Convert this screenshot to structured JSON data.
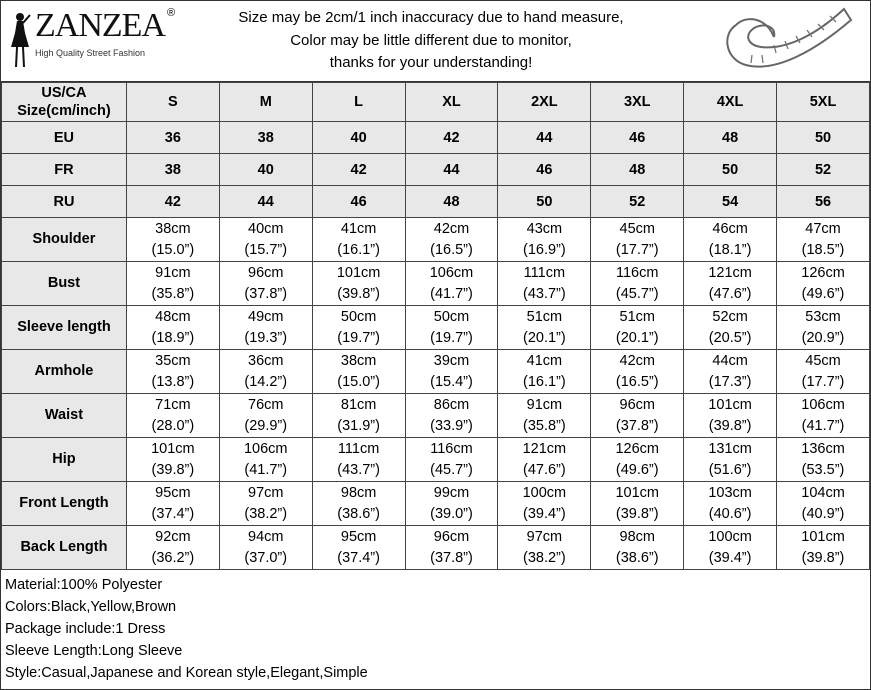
{
  "brand": {
    "name": "ZANZEA",
    "registered": "®",
    "tagline": "High Quality Street Fashion"
  },
  "notice": [
    "Size may be 2cm/1 inch inaccuracy due to hand measure,",
    "Color may be little different due to monitor,",
    "thanks for your understanding!"
  ],
  "table": {
    "header_label": [
      "US/CA",
      "Size(cm/inch)"
    ],
    "sizes": [
      "S",
      "M",
      "L",
      "XL",
      "2XL",
      "3XL",
      "4XL",
      "5XL"
    ],
    "intl_rows": [
      {
        "label": "EU",
        "values": [
          "36",
          "38",
          "40",
          "42",
          "44",
          "46",
          "48",
          "50"
        ]
      },
      {
        "label": "FR",
        "values": [
          "38",
          "40",
          "42",
          "44",
          "46",
          "48",
          "50",
          "52"
        ]
      },
      {
        "label": "RU",
        "values": [
          "42",
          "44",
          "46",
          "48",
          "50",
          "52",
          "54",
          "56"
        ]
      }
    ],
    "measure_rows": [
      {
        "label": "Shoulder",
        "cm": [
          "38cm",
          "40cm",
          "41cm",
          "42cm",
          "43cm",
          "45cm",
          "46cm",
          "47cm"
        ],
        "inch": [
          "(15.0”)",
          "(15.7”)",
          "(16.1”)",
          "(16.5”)",
          "(16.9”)",
          "(17.7”)",
          "(18.1”)",
          "(18.5”)"
        ]
      },
      {
        "label": "Bust",
        "cm": [
          "91cm",
          "96cm",
          "101cm",
          "106cm",
          "111cm",
          "116cm",
          "121cm",
          "126cm"
        ],
        "inch": [
          "(35.8”)",
          "(37.8”)",
          "(39.8”)",
          "(41.7”)",
          "(43.7”)",
          "(45.7”)",
          "(47.6”)",
          "(49.6”)"
        ]
      },
      {
        "label": "Sleeve length",
        "cm": [
          "48cm",
          "49cm",
          "50cm",
          "50cm",
          "51cm",
          "51cm",
          "52cm",
          "53cm"
        ],
        "inch": [
          "(18.9”)",
          "(19.3”)",
          "(19.7”)",
          "(19.7”)",
          "(20.1”)",
          "(20.1”)",
          "(20.5”)",
          "(20.9”)"
        ]
      },
      {
        "label": "Armhole",
        "cm": [
          "35cm",
          "36cm",
          "38cm",
          "39cm",
          "41cm",
          "42cm",
          "44cm",
          "45cm"
        ],
        "inch": [
          "(13.8”)",
          "(14.2”)",
          "(15.0”)",
          "(15.4”)",
          "(16.1”)",
          "(16.5”)",
          "(17.3”)",
          "(17.7”)"
        ]
      },
      {
        "label": "Waist",
        "cm": [
          "71cm",
          "76cm",
          "81cm",
          "86cm",
          "91cm",
          "96cm",
          "101cm",
          "106cm"
        ],
        "inch": [
          "(28.0”)",
          "(29.9”)",
          "(31.9”)",
          "(33.9”)",
          "(35.8”)",
          "(37.8”)",
          "(39.8”)",
          "(41.7”)"
        ]
      },
      {
        "label": "Hip",
        "cm": [
          "101cm",
          "106cm",
          "111cm",
          "116cm",
          "121cm",
          "126cm",
          "131cm",
          "136cm"
        ],
        "inch": [
          "(39.8”)",
          "(41.7”)",
          "(43.7”)",
          "(45.7”)",
          "(47.6”)",
          "(49.6”)",
          "(51.6”)",
          "(53.5”)"
        ]
      },
      {
        "label": "Front Length",
        "cm": [
          "95cm",
          "97cm",
          "98cm",
          "99cm",
          "100cm",
          "101cm",
          "103cm",
          "104cm"
        ],
        "inch": [
          "(37.4”)",
          "(38.2”)",
          "(38.6”)",
          "(39.0”)",
          "(39.4”)",
          "(39.8”)",
          "(40.6”)",
          "(40.9”)"
        ]
      },
      {
        "label": "Back Length",
        "cm": [
          "92cm",
          "94cm",
          "95cm",
          "96cm",
          "97cm",
          "98cm",
          "100cm",
          "101cm"
        ],
        "inch": [
          "(36.2”)",
          "(37.0”)",
          "(37.4”)",
          "(37.8”)",
          "(38.2”)",
          "(38.6”)",
          "(39.4”)",
          "(39.8”)"
        ]
      }
    ]
  },
  "details": [
    "Material:100% Polyester",
    "Colors:Black,Yellow,Brown",
    "Package include:1 Dress",
    "Sleeve Length:Long Sleeve",
    "Style:Casual,Japanese and Korean style,Elegant,Simple"
  ],
  "colors": {
    "header_bg": "#e8e8e8",
    "border": "#444444"
  }
}
